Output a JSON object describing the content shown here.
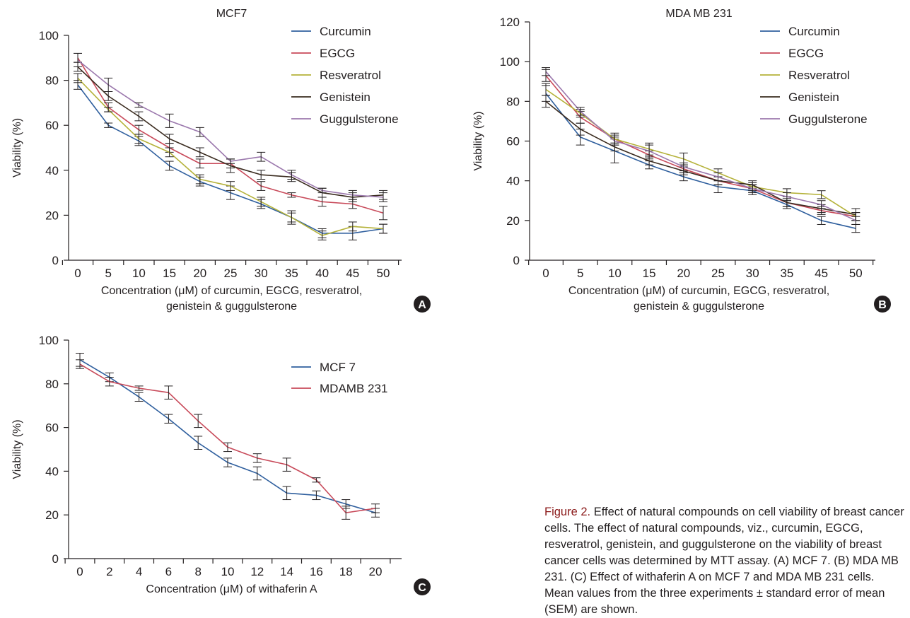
{
  "figure": {
    "caption_label": "Figure 2.",
    "caption_text": "Effect of natural compounds on cell viability of breast cancer cells. The effect of natural compounds, viz., curcumin, EGCG, resveratrol, genistein, and guggulsterone on the viability of breast cancer cells was determined by MTT assay. (A) MCF 7. (B) MDA MB 231. (C) Effect of withaferin A on MCF 7 and MDA MB 231 cells. Mean values from the three experiments ± standard error of mean (SEM) are shown."
  },
  "chart_data": [
    {
      "type": "line",
      "panel_label": "A",
      "title": "MCF7",
      "ylabel": "Viability (%)",
      "xlabel_lines": [
        "Concentration (μM) of curcumin, EGCG, resveratrol,",
        "genistein & guggulsterone"
      ],
      "categories": [
        "0",
        "5",
        "10",
        "15",
        "20",
        "25",
        "30",
        "35",
        "40",
        "45",
        "50"
      ],
      "yticks": [
        "0",
        "20",
        "40",
        "60",
        "80",
        "100"
      ],
      "ylim": [
        0,
        100
      ],
      "legend_position": "top-right",
      "grid": false,
      "series": [
        {
          "name": "Curcumin",
          "color": "#2f5f9e",
          "values": [
            78,
            60,
            53,
            42,
            35,
            30,
            25,
            19,
            12,
            12,
            14
          ],
          "errors": [
            2,
            1,
            2,
            2,
            2,
            3,
            2,
            3,
            2,
            3,
            2
          ]
        },
        {
          "name": "EGCG",
          "color": "#c84a5a",
          "values": [
            90,
            68,
            58,
            50,
            43,
            43,
            33,
            29,
            26,
            25,
            21
          ],
          "errors": [
            2,
            2,
            2,
            2,
            2,
            2,
            2,
            1,
            2,
            2,
            3
          ]
        },
        {
          "name": "Resveratrol",
          "color": "#b5b23a",
          "values": [
            81,
            67,
            54,
            48,
            36,
            33,
            26,
            19,
            11,
            15,
            14
          ],
          "errors": [
            2,
            1,
            2,
            2,
            2,
            2,
            2,
            2,
            2,
            2,
            2
          ]
        },
        {
          "name": "Genistein",
          "color": "#3a2b1f",
          "values": [
            86,
            73,
            64,
            54,
            48,
            42,
            38,
            37,
            30,
            28,
            29
          ],
          "errors": [
            2,
            2,
            2,
            2,
            2,
            3,
            2,
            2,
            2,
            2,
            2
          ]
        },
        {
          "name": "Guggulsterone",
          "color": "#9b78ad",
          "values": [
            89,
            78,
            69,
            62,
            57,
            44,
            46,
            38,
            31,
            29,
            28
          ],
          "errors": [
            3,
            3,
            1,
            3,
            2,
            1,
            2,
            2,
            1,
            2,
            2
          ]
        }
      ]
    },
    {
      "type": "line",
      "panel_label": "B",
      "title": "MDA MB 231",
      "ylabel": "Viability (%)",
      "xlabel_lines": [
        "Concentration (μM) of curcumin, EGCG, resveratrol,",
        "genistein & guggulsterone"
      ],
      "categories": [
        "0",
        "5",
        "10",
        "15",
        "20",
        "25",
        "30",
        "35",
        "45",
        "50"
      ],
      "yticks": [
        "0",
        "20",
        "40",
        "60",
        "80",
        "100",
        "120"
      ],
      "ylim": [
        0,
        120
      ],
      "legend_position": "top-right",
      "grid": false,
      "series": [
        {
          "name": "Curcumin",
          "color": "#2f5f9e",
          "values": [
            84,
            62,
            55,
            48,
            42,
            37,
            35,
            28,
            20,
            16
          ],
          "errors": [
            4,
            4,
            6,
            2,
            2,
            3,
            2,
            2,
            2,
            2
          ]
        },
        {
          "name": "EGCG",
          "color": "#c84a5a",
          "values": [
            93,
            72,
            61,
            53,
            46,
            40,
            36,
            29,
            25,
            22
          ],
          "errors": [
            3,
            3,
            2,
            2,
            2,
            2,
            2,
            2,
            2,
            2
          ]
        },
        {
          "name": "Resveratrol",
          "color": "#b5b23a",
          "values": [
            86,
            74,
            61,
            56,
            51,
            44,
            37,
            34,
            33,
            22
          ],
          "errors": [
            3,
            2,
            3,
            3,
            3,
            2,
            2,
            2,
            2,
            2
          ]
        },
        {
          "name": "Genistein",
          "color": "#3a2b1f",
          "values": [
            80,
            66,
            57,
            50,
            45,
            40,
            38,
            29,
            26,
            23
          ],
          "errors": [
            3,
            3,
            2,
            2,
            2,
            2,
            2,
            2,
            2,
            3
          ]
        },
        {
          "name": "Guggulsterone",
          "color": "#9b78ad",
          "values": [
            95,
            75,
            60,
            55,
            47,
            42,
            36,
            32,
            28,
            20
          ],
          "errors": [
            2,
            2,
            2,
            3,
            2,
            2,
            2,
            2,
            2,
            2
          ]
        }
      ]
    },
    {
      "type": "line",
      "panel_label": "C",
      "title": "",
      "ylabel": "Viability (%)",
      "xlabel_lines": [
        "Concentration (μM) of withaferin A"
      ],
      "categories": [
        "0",
        "2",
        "4",
        "6",
        "8",
        "10",
        "12",
        "14",
        "16",
        "18",
        "20"
      ],
      "yticks": [
        "0",
        "20",
        "40",
        "60",
        "80",
        "100"
      ],
      "ylim": [
        0,
        100
      ],
      "legend_position": "top-right",
      "grid": false,
      "series": [
        {
          "name": "MCF 7",
          "color": "#2f5f9e",
          "values": [
            91,
            83,
            74,
            64,
            53,
            44,
            39,
            30,
            29,
            25,
            21
          ],
          "errors": [
            3,
            2,
            2,
            2,
            3,
            2,
            3,
            3,
            2,
            2,
            2
          ]
        },
        {
          "name": "MDAMB 231",
          "color": "#c84a5a",
          "values": [
            89,
            81,
            78,
            76,
            63,
            51,
            46,
            43,
            36,
            21,
            23
          ],
          "errors": [
            2,
            2,
            1,
            3,
            3,
            2,
            2,
            3,
            1,
            3,
            2
          ]
        }
      ]
    }
  ]
}
